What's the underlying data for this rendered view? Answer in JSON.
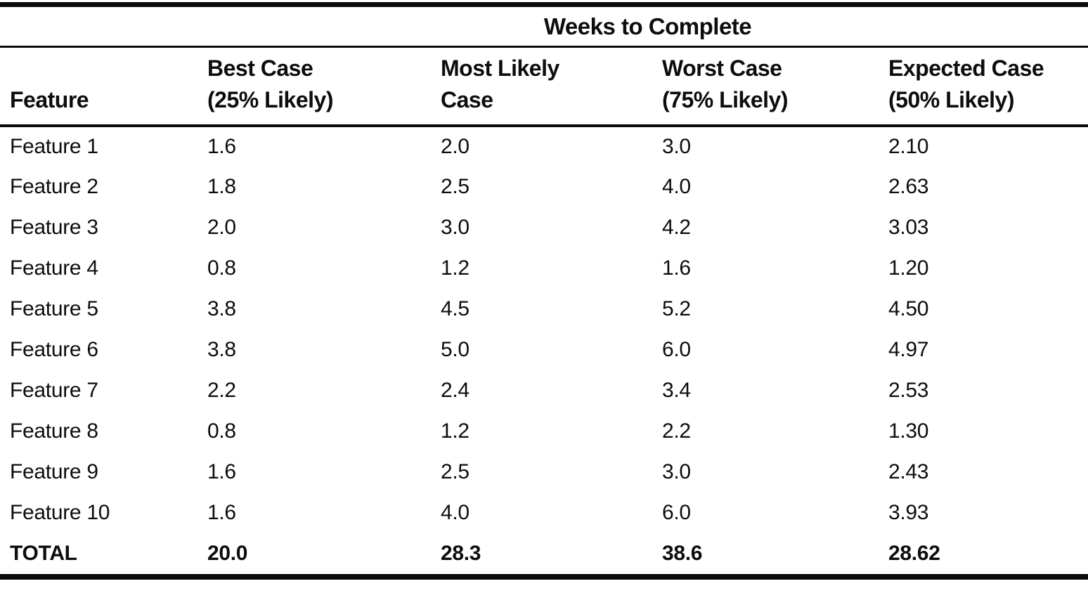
{
  "document": {
    "spanner_title": "Weeks to Complete",
    "columns": [
      {
        "label": "Feature"
      },
      {
        "line1": "Best Case",
        "line2": "(25% Likely)"
      },
      {
        "line1": "Most Likely",
        "line2": "Case"
      },
      {
        "line1": "Worst Case",
        "line2": "(75% Likely)"
      },
      {
        "line1": "Expected Case",
        "line2": "(50% Likely)"
      }
    ],
    "rows": [
      {
        "feature": "Feature 1",
        "best_case": "1.6",
        "most_likely": "2.0",
        "worst_case": "3.0",
        "expected_case": "2.10"
      },
      {
        "feature": "Feature 2",
        "best_case": "1.8",
        "most_likely": "2.5",
        "worst_case": "4.0",
        "expected_case": "2.63"
      },
      {
        "feature": "Feature 3",
        "best_case": "2.0",
        "most_likely": "3.0",
        "worst_case": "4.2",
        "expected_case": "3.03"
      },
      {
        "feature": "Feature 4",
        "best_case": "0.8",
        "most_likely": "1.2",
        "worst_case": "1.6",
        "expected_case": "1.20"
      },
      {
        "feature": "Feature 5",
        "best_case": "3.8",
        "most_likely": "4.5",
        "worst_case": "5.2",
        "expected_case": "4.50"
      },
      {
        "feature": "Feature 6",
        "best_case": "3.8",
        "most_likely": "5.0",
        "worst_case": "6.0",
        "expected_case": "4.97"
      },
      {
        "feature": "Feature 7",
        "best_case": "2.2",
        "most_likely": "2.4",
        "worst_case": "3.4",
        "expected_case": "2.53"
      },
      {
        "feature": "Feature 8",
        "best_case": "0.8",
        "most_likely": "1.2",
        "worst_case": "2.2",
        "expected_case": "1.30"
      },
      {
        "feature": "Feature 9",
        "best_case": "1.6",
        "most_likely": "2.5",
        "worst_case": "3.0",
        "expected_case": "2.43"
      },
      {
        "feature": "Feature 10",
        "best_case": "1.6",
        "most_likely": "4.0",
        "worst_case": "6.0",
        "expected_case": "3.93"
      }
    ],
    "total_row": {
      "feature": "TOTAL",
      "best_case": "20.0",
      "most_likely": "28.3",
      "worst_case": "38.6",
      "expected_case": "28.62"
    },
    "colors": {
      "ink": "#0d0d0d",
      "rule": "#0a0a0a",
      "background": "#ffffff"
    }
  }
}
